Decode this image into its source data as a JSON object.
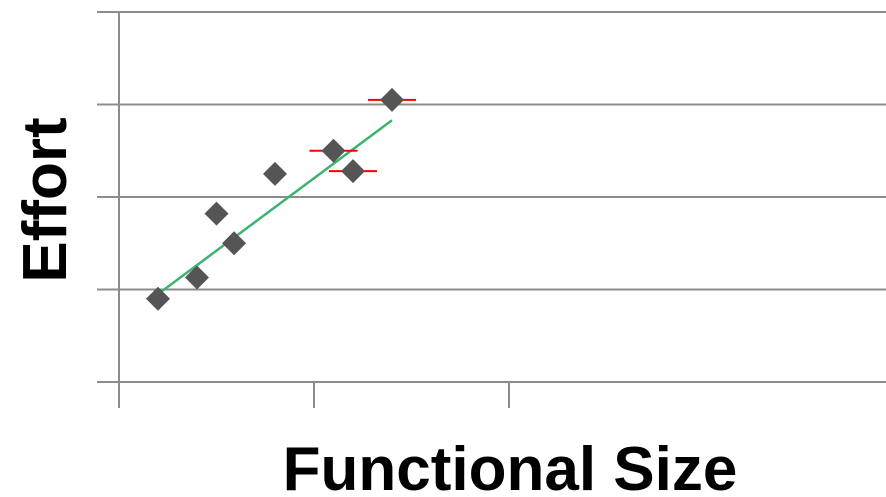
{
  "chart_data": {
    "type": "scatter",
    "title": "",
    "xlabel": "Functional Size",
    "ylabel": "Effort",
    "xlim": [
      0,
      2
    ],
    "ylim": [
      0,
      4
    ],
    "grid": "horizontal",
    "tick_labels": "none",
    "series": [
      {
        "marker": "diamond",
        "color": "#555555",
        "x": [
          0.2,
          0.4,
          0.5,
          0.59,
          0.8,
          1.1,
          1.2,
          1.4
        ],
        "y": [
          0.9,
          1.13,
          1.82,
          1.5,
          2.25,
          2.5,
          2.28,
          3.05
        ]
      }
    ],
    "trendline": {
      "color": "#3cb371",
      "x": [
        0.2,
        1.4
      ],
      "y": [
        0.95,
        2.83
      ]
    },
    "error_markers": {
      "color": "#ff0000",
      "x": [
        1.1,
        1.2,
        1.4
      ],
      "y": [
        2.5,
        2.28,
        3.05
      ]
    }
  }
}
